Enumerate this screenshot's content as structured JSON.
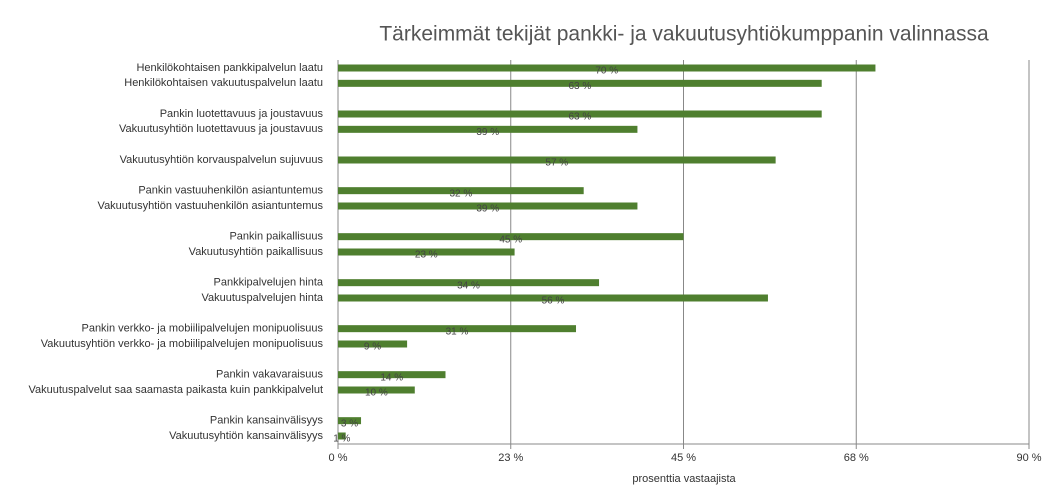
{
  "chart_data": {
    "type": "bar",
    "orientation": "horizontal",
    "title": "Tärkeimmät tekijät pankki- ja vakuutusyhtiökumppanin valinnassa",
    "x_label": "prosenttia vastaajista",
    "categories": [
      "Henkilökohtaisen pankkipalvelun laatu",
      "Henkilökohtaisen vakuutuspalvelun laatu",
      null,
      "Pankin luotettavuus ja joustavuus",
      "Vakuutusyhtiön luotettavuus ja joustavuus",
      null,
      "Vakuutusyhtiön korvauspalvelun sujuvuus",
      null,
      "Pankin vastuuhenkilön asiantuntemus",
      "Vakuutusyhtiön vastuuhenkilön asiantuntemus",
      null,
      "Pankin paikallisuus",
      "Vakuutusyhtiön paikallisuus",
      null,
      "Pankkipalvelujen hinta",
      "Vakuutuspalvelujen hinta",
      null,
      "Pankin verkko- ja mobiilipalvelujen monipuolisuus",
      "Vakuutusyhtiön verkko- ja mobiilipalvelujen monipuolisuus",
      null,
      "Pankin vakavaraisuus",
      "Vakuutuspalvelut saa saamasta paikasta kuin pankkipalvelut",
      null,
      "Pankin kansainvälisyys",
      "Vakuutusyhtiön kansainvälisyys"
    ],
    "values": [
      70,
      63,
      null,
      63,
      39,
      null,
      57,
      null,
      32,
      39,
      null,
      45,
      23,
      null,
      34,
      56,
      null,
      31,
      9,
      null,
      14,
      10,
      null,
      3,
      1
    ],
    "value_labels": [
      "70 %",
      "63 %",
      null,
      "63 %",
      "39 %",
      null,
      "57 %",
      null,
      "32 %",
      "39 %",
      null,
      "45 %",
      "23 %",
      null,
      "34 %",
      "56 %",
      null,
      "31 %",
      "9 %",
      null,
      "14 %",
      "10 %",
      null,
      "3 %",
      "1 %"
    ],
    "color": "#4f7f2f",
    "xlim": [
      0,
      90
    ],
    "xticks": [
      {
        "value": 0,
        "label": "0 %"
      },
      {
        "value": 22.5,
        "label": "23 %"
      },
      {
        "value": 45,
        "label": "45 %"
      },
      {
        "value": 67.5,
        "label": "68 %"
      },
      {
        "value": 90,
        "label": "90 %"
      }
    ],
    "grid": true
  }
}
